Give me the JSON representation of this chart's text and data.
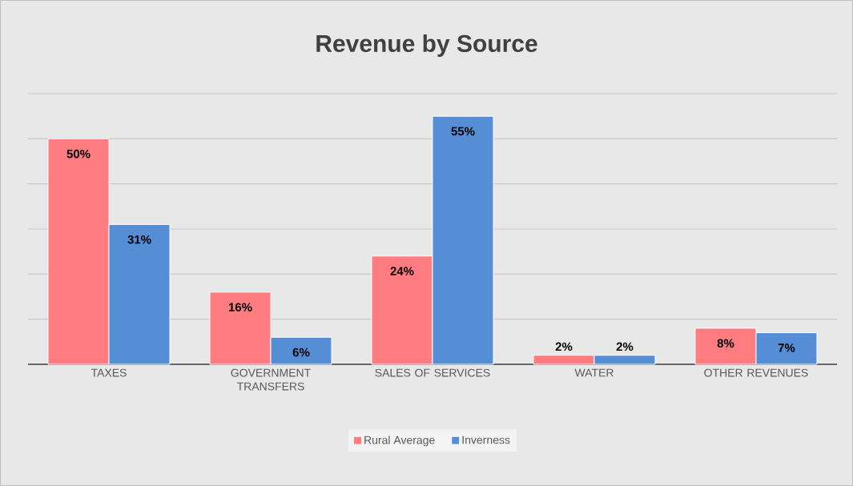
{
  "chart_data": {
    "type": "bar",
    "title": "Revenue by Source",
    "categories": [
      "TAXES",
      "GOVERNMENT TRANSFERS",
      "SALES OF SERVICES",
      "WATER",
      "OTHER REVENUES"
    ],
    "series": [
      {
        "name": "Rural Average",
        "color": "#ff7c80",
        "values": [
          50,
          16,
          24,
          2,
          8
        ],
        "value_labels": [
          "50%",
          "16%",
          "24%",
          "2%",
          "8%"
        ]
      },
      {
        "name": "Inverness",
        "color": "#558ed5",
        "values": [
          31,
          6,
          55,
          2,
          7
        ],
        "value_labels": [
          "31%",
          "6%",
          "55%",
          "2%",
          "7%"
        ]
      }
    ],
    "ylim": [
      0,
      60
    ],
    "yticks": [
      {
        "value": 0,
        "label": null
      },
      {
        "value": 10,
        "label": null
      },
      {
        "value": 20,
        "label": null
      },
      {
        "value": 30,
        "label": null
      },
      {
        "value": 40,
        "label": null
      },
      {
        "value": 50,
        "label": null
      },
      {
        "value": 60,
        "label": null
      }
    ],
    "grid": "y",
    "legend": "bottom",
    "tick_labels": "x"
  }
}
